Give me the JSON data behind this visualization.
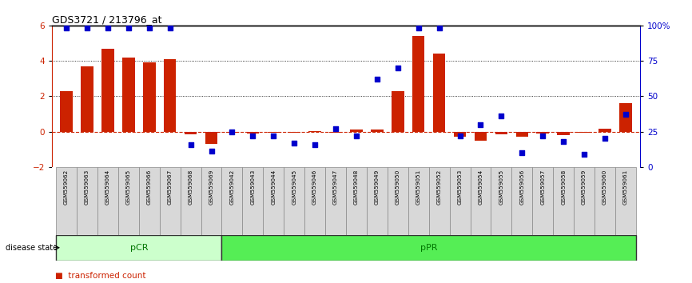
{
  "title": "GDS3721 / 213796_at",
  "samples": [
    "GSM559062",
    "GSM559063",
    "GSM559064",
    "GSM559065",
    "GSM559066",
    "GSM559067",
    "GSM559068",
    "GSM559069",
    "GSM559042",
    "GSM559043",
    "GSM559044",
    "GSM559045",
    "GSM559046",
    "GSM559047",
    "GSM559048",
    "GSM559049",
    "GSM559050",
    "GSM559051",
    "GSM559052",
    "GSM559053",
    "GSM559054",
    "GSM559055",
    "GSM559056",
    "GSM559057",
    "GSM559058",
    "GSM559059",
    "GSM559060",
    "GSM559061"
  ],
  "transformed_count": [
    2.3,
    3.7,
    4.7,
    4.2,
    3.9,
    4.1,
    -0.15,
    -0.7,
    -0.05,
    -0.1,
    -0.05,
    -0.05,
    0.05,
    -0.05,
    0.1,
    0.1,
    2.3,
    5.4,
    4.4,
    -0.3,
    -0.5,
    -0.15,
    -0.3,
    -0.1,
    -0.2,
    -0.05,
    0.15,
    1.6
  ],
  "percentile_rank": [
    98,
    98,
    98,
    98,
    98,
    98,
    16,
    11,
    25,
    22,
    22,
    17,
    16,
    27,
    22,
    62,
    70,
    98,
    98,
    22,
    30,
    36,
    10,
    22,
    18,
    9,
    20,
    37
  ],
  "pCR_count": 8,
  "pPR_count": 20,
  "bar_color": "#cc2200",
  "dot_color": "#0000cc",
  "ylim_left": [
    -2,
    6
  ],
  "ylim_right": [
    0,
    100
  ],
  "yticks_left": [
    -2,
    0,
    2,
    4,
    6
  ],
  "yticks_right": [
    0,
    25,
    50,
    75,
    100
  ],
  "ytick_labels_right": [
    "0",
    "25",
    "50",
    "75",
    "100%"
  ],
  "pCR_color": "#ccffcc",
  "pPR_color": "#55ee55",
  "group_label_color": "#007700",
  "bar_width": 0.6
}
